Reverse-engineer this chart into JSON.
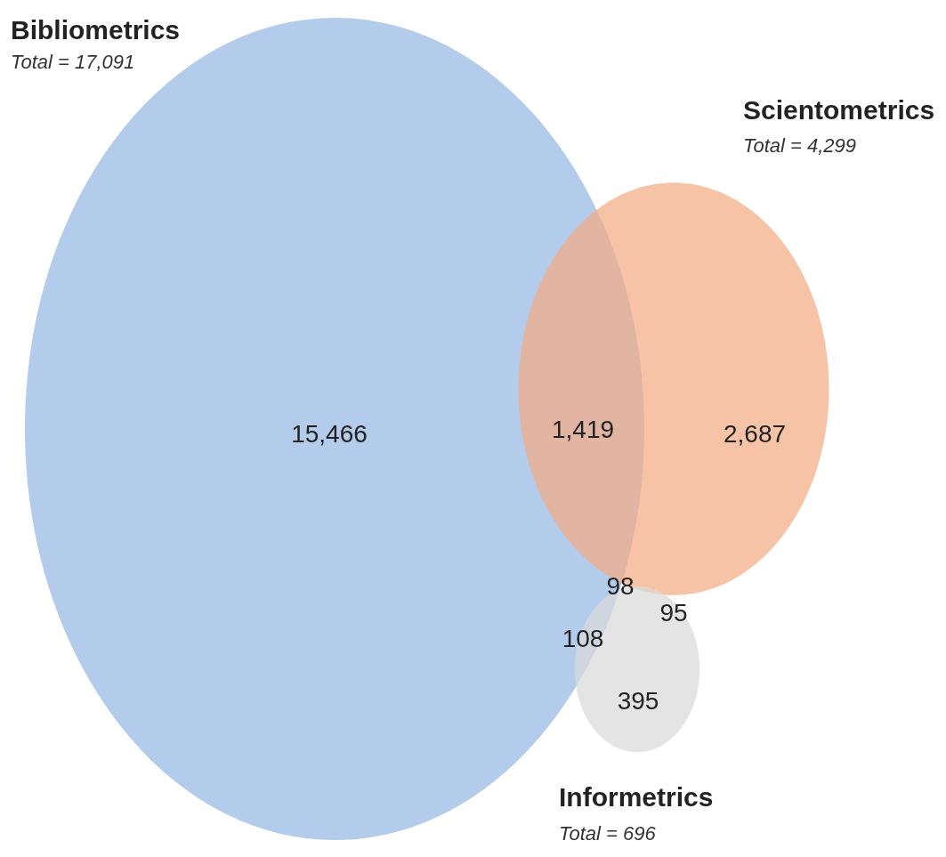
{
  "chart_data": {
    "type": "other",
    "categories": [
      "Bibliometrics",
      "Scientometrics",
      "Informetrics"
    ],
    "values": [
      17091,
      4299,
      696
    ],
    "value_labels": [
      "Total = 17,091",
      "Total = 4,299",
      "Total = 696"
    ],
    "colors": [
      "#97b8e3",
      "#f3ac85",
      "#d9d9d9"
    ],
    "annotations": [
      "15,466",
      "1,419",
      "2,687",
      "98",
      "95",
      "108",
      "395"
    ]
  }
}
